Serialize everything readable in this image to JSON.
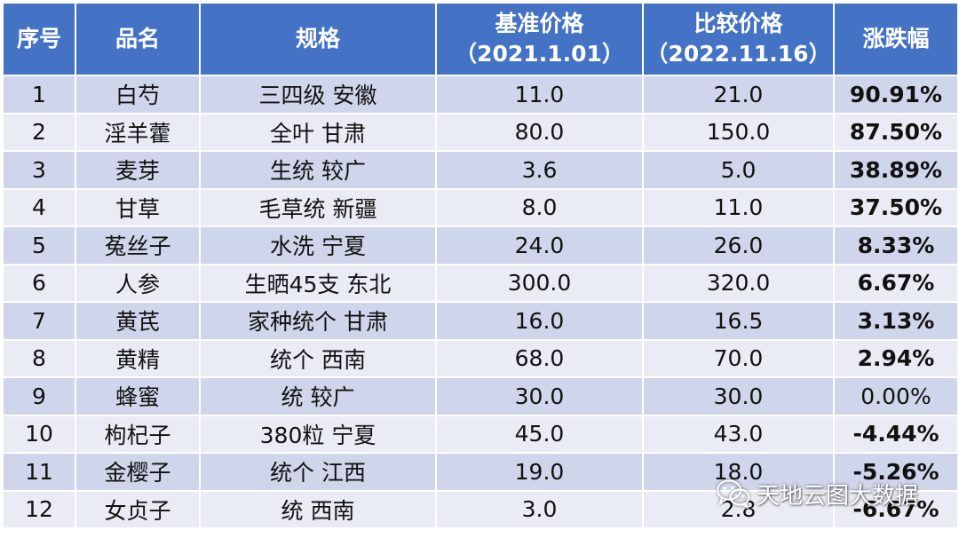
{
  "colors": {
    "header_bg": "#4472c4",
    "row_odd": "#cfd5ea",
    "row_even": "#e9ebf5",
    "up": "#ff0000",
    "down": "#00b050"
  },
  "table": {
    "headers": {
      "index": "序号",
      "name": "品名",
      "spec": "规格",
      "base_price": "基准价格",
      "base_date": "（2021.1.01）",
      "compare_price": "比较价格",
      "compare_date": "（2022.11.16）",
      "change": "涨跌幅"
    },
    "rows": [
      {
        "index": "1",
        "name": "白芍",
        "spec": "三四级 安徽",
        "base": "11.0",
        "compare": "21.0",
        "change": "90.91%",
        "trend": "up"
      },
      {
        "index": "2",
        "name": "淫羊藿",
        "spec": "全叶 甘肃",
        "base": "80.0",
        "compare": "150.0",
        "change": "87.50%",
        "trend": "up"
      },
      {
        "index": "3",
        "name": "麦芽",
        "spec": "生统 较广",
        "base": "3.6",
        "compare": "5.0",
        "change": "38.89%",
        "trend": "up"
      },
      {
        "index": "4",
        "name": "甘草",
        "spec": "毛草统 新疆",
        "base": "8.0",
        "compare": "11.0",
        "change": "37.50%",
        "trend": "up"
      },
      {
        "index": "5",
        "name": "菟丝子",
        "spec": "水洗 宁夏",
        "base": "24.0",
        "compare": "26.0",
        "change": "8.33%",
        "trend": "up"
      },
      {
        "index": "6",
        "name": "人参",
        "spec": "生晒45支 东北",
        "base": "300.0",
        "compare": "320.0",
        "change": "6.67%",
        "trend": "up"
      },
      {
        "index": "7",
        "name": "黄芪",
        "spec": "家种统个 甘肃",
        "base": "16.0",
        "compare": "16.5",
        "change": "3.13%",
        "trend": "up"
      },
      {
        "index": "8",
        "name": "黄精",
        "spec": "统个 西南",
        "base": "68.0",
        "compare": "70.0",
        "change": "2.94%",
        "trend": "up"
      },
      {
        "index": "9",
        "name": "蜂蜜",
        "spec": "统 较广",
        "base": "30.0",
        "compare": "30.0",
        "change": "0.00%",
        "trend": "flat"
      },
      {
        "index": "10",
        "name": "枸杞子",
        "spec": "380粒 宁夏",
        "base": "45.0",
        "compare": "43.0",
        "change": "-4.44%",
        "trend": "down"
      },
      {
        "index": "11",
        "name": "金樱子",
        "spec": "统个 江西",
        "base": "19.0",
        "compare": "18.0",
        "change": "-5.26%",
        "trend": "down"
      },
      {
        "index": "12",
        "name": "女贞子",
        "spec": "统 西南",
        "base": "3.0",
        "compare": "2.8",
        "change": "-6.67%",
        "trend": "down"
      }
    ]
  },
  "watermark": {
    "text": "天地云图大数据",
    "icon": "wechat-icon"
  }
}
